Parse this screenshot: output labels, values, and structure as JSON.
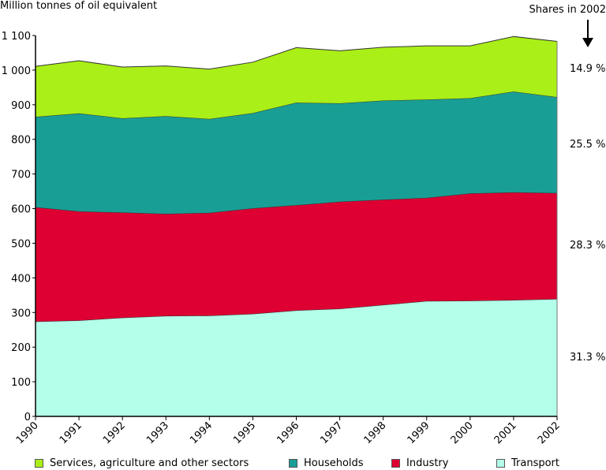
{
  "chart_data": {
    "type": "area",
    "stacked": true,
    "title": "",
    "ylabel": "Million tonnes of oil equivalent",
    "xlabel": "",
    "ylim": [
      0,
      1100
    ],
    "yticks": [
      0,
      100,
      200,
      300,
      400,
      500,
      600,
      700,
      800,
      900,
      1000,
      1100
    ],
    "ytick_labels": [
      "0",
      "100",
      "200",
      "300",
      "400",
      "500",
      "600",
      "700",
      "800",
      "900",
      "1 000",
      "1 100"
    ],
    "x": [
      "1990",
      "1991",
      "1992",
      "1993",
      "1994",
      "1995",
      "1996",
      "1997",
      "1998",
      "1999",
      "2000",
      "2001",
      "2002"
    ],
    "grid": false,
    "legend_position": "bottom",
    "series": [
      {
        "name": "Transport",
        "color": "#b3ffe9",
        "values": [
          274,
          277,
          285,
          290,
          291,
          296,
          306,
          311,
          322,
          333,
          334,
          336,
          339
        ]
      },
      {
        "name": "Industry",
        "color": "#de0032",
        "values": [
          330,
          315,
          304,
          295,
          297,
          305,
          304,
          309,
          304,
          298,
          310,
          311,
          306
        ]
      },
      {
        "name": "Households",
        "color": "#199e96",
        "values": [
          261,
          283,
          272,
          282,
          271,
          275,
          296,
          284,
          286,
          284,
          275,
          291,
          277
        ]
      },
      {
        "name": "Services, agriculture and other sectors",
        "color": "#aaef17",
        "values": [
          146,
          152,
          148,
          145,
          144,
          147,
          159,
          152,
          154,
          155,
          151,
          159,
          161
        ]
      }
    ],
    "annotations": {
      "shares_title": "Shares in 2002",
      "arrow": "down-arrow",
      "shares": [
        {
          "series": "Services, agriculture and other sectors",
          "label": "14.9 %"
        },
        {
          "series": "Households",
          "label": "25.5 %"
        },
        {
          "series": "Industry",
          "label": "28.3 %"
        },
        {
          "series": "Transport",
          "label": "31.3 %"
        }
      ]
    },
    "legend": [
      {
        "label": "Services, agriculture and other sectors",
        "color": "#aaef17"
      },
      {
        "label": "Households",
        "color": "#199e96"
      },
      {
        "label": "Industry",
        "color": "#de0032"
      },
      {
        "label": "Transport",
        "color": "#b3ffe9"
      }
    ]
  }
}
